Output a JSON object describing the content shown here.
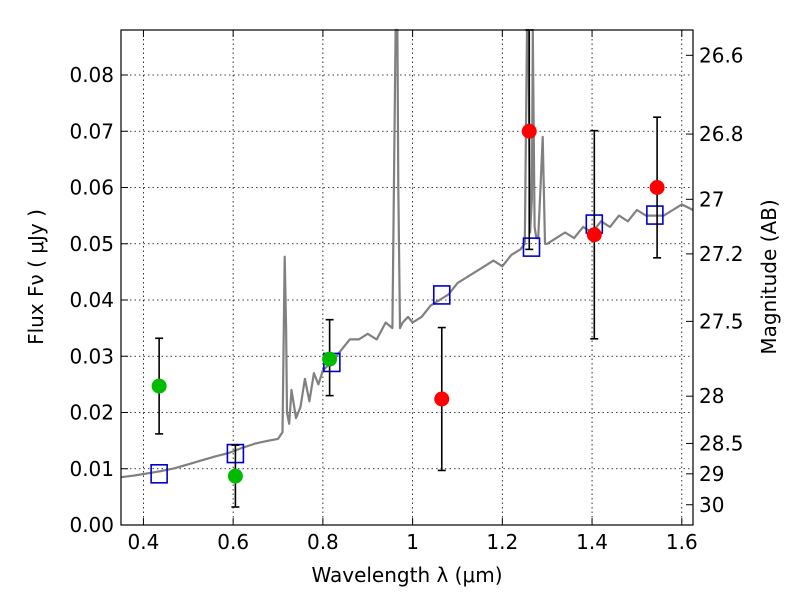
{
  "chart_data": {
    "type": "scatter",
    "xlabel": "Wavelength  λ (μm)",
    "ylabel": "Flux  Fν  ( μJy )",
    "ylabel_right": "Magnitude (AB)",
    "xlim": [
      0.35,
      1.625
    ],
    "ylim": [
      0.0,
      0.088
    ],
    "grid": true,
    "x_ticks": [
      0.4,
      0.6,
      0.8,
      1.0,
      1.2,
      1.4,
      1.6
    ],
    "x_tick_labels": [
      "0.4",
      "0.6",
      "0.8",
      "1",
      "1.2",
      "1.4",
      "1.6"
    ],
    "y_ticks": [
      0.0,
      0.01,
      0.02,
      0.03,
      0.04,
      0.05,
      0.06,
      0.07,
      0.08
    ],
    "y_tick_labels": [
      "0.00",
      "0.01",
      "0.02",
      "0.03",
      "0.04",
      "0.05",
      "0.06",
      "0.07",
      "0.08"
    ],
    "right_ticks": [
      {
        "flux": 0.0835,
        "label": "26.6"
      },
      {
        "flux": 0.0695,
        "label": "26.8"
      },
      {
        "flux": 0.0579,
        "label": "27"
      },
      {
        "flux": 0.0482,
        "label": "27.2"
      },
      {
        "flux": 0.0362,
        "label": "27.5"
      },
      {
        "flux": 0.0229,
        "label": "28"
      },
      {
        "flux": 0.0145,
        "label": "28.5"
      },
      {
        "flux": 0.0091,
        "label": "29"
      },
      {
        "flux": 0.0036,
        "label": "30"
      }
    ],
    "colors": {
      "spectrum": "#808080",
      "model_box": "#0000cc",
      "green_points": "#00bb00",
      "red_points": "#ff0000",
      "errorbar": "#000000"
    },
    "spectrum": {
      "x": [
        0.35,
        0.38,
        0.41,
        0.44,
        0.47,
        0.5,
        0.53,
        0.56,
        0.59,
        0.62,
        0.65,
        0.68,
        0.7,
        0.71,
        0.715,
        0.718,
        0.72,
        0.725,
        0.73,
        0.74,
        0.75,
        0.76,
        0.77,
        0.78,
        0.79,
        0.8,
        0.82,
        0.84,
        0.86,
        0.88,
        0.9,
        0.92,
        0.94,
        0.955,
        0.962,
        0.966,
        0.968,
        0.972,
        0.978,
        0.99,
        1.0,
        1.02,
        1.04,
        1.06,
        1.08,
        1.1,
        1.12,
        1.14,
        1.16,
        1.18,
        1.2,
        1.22,
        1.24,
        1.25,
        1.255,
        1.258,
        1.262,
        1.266,
        1.268,
        1.272,
        1.276,
        1.28,
        1.285,
        1.29,
        1.295,
        1.3,
        1.32,
        1.34,
        1.36,
        1.38,
        1.4,
        1.42,
        1.44,
        1.46,
        1.48,
        1.5,
        1.52,
        1.54,
        1.56,
        1.58,
        1.6,
        1.625
      ],
      "y": [
        0.0085,
        0.0088,
        0.0092,
        0.0096,
        0.0101,
        0.0108,
        0.0115,
        0.0122,
        0.0128,
        0.0137,
        0.0145,
        0.015,
        0.0153,
        0.0165,
        0.0477,
        0.035,
        0.02,
        0.018,
        0.024,
        0.019,
        0.021,
        0.026,
        0.022,
        0.027,
        0.025,
        0.0275,
        0.029,
        0.031,
        0.033,
        0.033,
        0.034,
        0.033,
        0.036,
        0.035,
        0.088,
        0.088,
        0.06,
        0.035,
        0.036,
        0.037,
        0.036,
        0.037,
        0.039,
        0.04,
        0.041,
        0.043,
        0.044,
        0.045,
        0.046,
        0.047,
        0.046,
        0.048,
        0.049,
        0.05,
        0.088,
        0.088,
        0.052,
        0.058,
        0.088,
        0.053,
        0.051,
        0.051,
        0.06,
        0.069,
        0.05,
        0.05,
        0.051,
        0.052,
        0.051,
        0.053,
        0.052,
        0.054,
        0.053,
        0.055,
        0.054,
        0.056,
        0.055,
        0.055,
        0.055,
        0.056,
        0.057,
        0.056
      ]
    },
    "model_boxes": {
      "x": [
        0.435,
        0.605,
        0.82,
        1.065,
        1.265,
        1.405,
        1.54
      ],
      "y": [
        0.0091,
        0.0127,
        0.0289,
        0.0409,
        0.0494,
        0.0535,
        0.0551
      ]
    },
    "green_points": {
      "x": [
        0.435,
        0.605,
        0.815
      ],
      "y": [
        0.0247,
        0.0087,
        0.0295
      ],
      "err_lo": [
        0.0085,
        0.0055,
        0.0065
      ],
      "err_hi": [
        0.0085,
        0.0055,
        0.007
      ]
    },
    "red_points": {
      "x": [
        1.065,
        1.26,
        1.405,
        1.545
      ],
      "y": [
        0.0224,
        0.07,
        0.0516,
        0.06
      ],
      "err_lo": [
        0.0127,
        0.021,
        0.0185,
        0.0125
      ],
      "err_hi": [
        0.0127,
        0.018,
        0.0185,
        0.0125
      ]
    }
  }
}
